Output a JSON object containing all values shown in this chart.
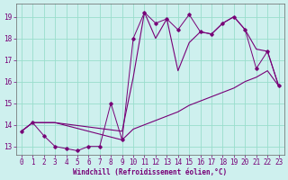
{
  "xlabel": "Windchill (Refroidissement éolien,°C)",
  "background_color": "#cef0ee",
  "grid_color": "#99ddcc",
  "line_color": "#770077",
  "xlim": [
    -0.5,
    23.5
  ],
  "ylim": [
    12.6,
    19.6
  ],
  "yticks": [
    13,
    14,
    15,
    16,
    17,
    18,
    19
  ],
  "xticks": [
    0,
    1,
    2,
    3,
    4,
    5,
    6,
    7,
    8,
    9,
    10,
    11,
    12,
    13,
    14,
    15,
    16,
    17,
    18,
    19,
    20,
    21,
    22,
    23
  ],
  "series1_x": [
    0,
    1,
    2,
    3,
    4,
    5,
    6,
    7,
    8,
    9,
    10,
    11,
    12,
    13,
    14,
    15,
    16,
    17,
    18,
    19,
    20,
    21,
    22,
    23
  ],
  "series1_y": [
    13.7,
    14.1,
    13.5,
    13.0,
    12.9,
    12.8,
    13.0,
    13.0,
    15.0,
    13.3,
    18.0,
    19.2,
    18.7,
    18.9,
    18.4,
    19.1,
    18.3,
    18.2,
    18.7,
    19.0,
    18.4,
    16.6,
    17.4,
    15.8
  ],
  "series2_x": [
    0,
    1,
    3,
    9,
    10,
    11,
    12,
    13,
    14,
    15,
    16,
    17,
    18,
    19,
    20,
    21,
    22,
    23
  ],
  "series2_y": [
    13.7,
    14.1,
    14.1,
    13.7,
    16.2,
    19.2,
    18.0,
    18.9,
    16.5,
    17.8,
    18.3,
    18.2,
    18.7,
    19.0,
    18.4,
    17.5,
    17.4,
    15.8
  ],
  "series3_x": [
    0,
    1,
    3,
    9,
    10,
    11,
    12,
    13,
    14,
    15,
    16,
    17,
    18,
    19,
    20,
    21,
    22,
    23
  ],
  "series3_y": [
    13.7,
    14.1,
    14.1,
    13.3,
    13.8,
    14.0,
    14.2,
    14.4,
    14.6,
    14.9,
    15.1,
    15.3,
    15.5,
    15.7,
    16.0,
    16.2,
    16.5,
    15.8
  ],
  "xlabel_fontsize": 5.5,
  "tick_fontsize": 5.5
}
